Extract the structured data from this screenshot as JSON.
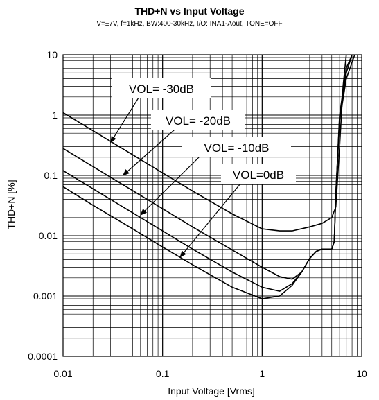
{
  "chart_data": {
    "type": "line",
    "title": "THD+N vs Input Voltage",
    "subtitle": "V=±7V, f=1kHz, BW:400-30kHz, I/O: INA1-Aout, TONE=OFF",
    "xlabel": "Input Voltage [Vrms]",
    "ylabel": "THD+N [%]",
    "xscale": "log",
    "yscale": "log",
    "xlim": [
      0.01,
      10
    ],
    "ylim": [
      0.0001,
      10
    ],
    "grid": true,
    "x_ticks": [
      "0.01",
      "0.1",
      "1",
      "10"
    ],
    "y_ticks": [
      "10",
      "1",
      "0.1",
      "0.01",
      "0.001",
      "0.0001"
    ],
    "series": [
      {
        "name": "VOL= -30dB",
        "x": [
          0.01,
          0.02,
          0.05,
          0.1,
          0.2,
          0.5,
          1,
          1.5,
          2,
          3,
          4,
          5,
          5.5,
          6,
          6.5,
          7
        ],
        "y": [
          1.1,
          0.55,
          0.22,
          0.11,
          0.055,
          0.023,
          0.013,
          0.012,
          0.012,
          0.014,
          0.016,
          0.02,
          0.03,
          0.3,
          3,
          10
        ]
      },
      {
        "name": "VOL= -20dB",
        "x": [
          0.01,
          0.02,
          0.05,
          0.1,
          0.2,
          0.5,
          1,
          1.5,
          2,
          2.5,
          3,
          3.5,
          4,
          5,
          5.3,
          5.5,
          6,
          7,
          8
        ],
        "y": [
          0.28,
          0.14,
          0.056,
          0.028,
          0.014,
          0.0058,
          0.003,
          0.0021,
          0.0019,
          0.0025,
          0.0042,
          0.0055,
          0.006,
          0.006,
          0.008,
          0.05,
          1,
          6,
          10
        ]
      },
      {
        "name": "VOL= -10dB",
        "x": [
          0.01,
          0.02,
          0.05,
          0.1,
          0.2,
          0.5,
          1,
          1.5,
          2,
          2.5,
          3,
          3.5,
          4,
          5,
          5.3,
          5.5,
          6,
          7,
          8
        ],
        "y": [
          0.12,
          0.06,
          0.024,
          0.012,
          0.006,
          0.0025,
          0.0014,
          0.0012,
          0.0016,
          0.0025,
          0.0042,
          0.0055,
          0.006,
          0.006,
          0.008,
          0.05,
          0.9,
          5,
          10
        ]
      },
      {
        "name": "VOL=0dB",
        "x": [
          0.01,
          0.02,
          0.05,
          0.1,
          0.2,
          0.5,
          1,
          1.5,
          2,
          2.5,
          3,
          3.5,
          4,
          5,
          5.3,
          5.5,
          6,
          7,
          8.5
        ],
        "y": [
          0.065,
          0.032,
          0.013,
          0.0065,
          0.0033,
          0.0014,
          0.0009,
          0.001,
          0.0015,
          0.0025,
          0.0042,
          0.0055,
          0.006,
          0.006,
          0.008,
          0.05,
          0.8,
          4,
          10
        ]
      }
    ],
    "annotations": [
      {
        "text": "VOL= -30dB",
        "arrow_to": [
          0.03,
          0.35
        ]
      },
      {
        "text": "VOL= -20dB",
        "arrow_to": [
          0.04,
          0.1
        ]
      },
      {
        "text": "VOL= -10dB",
        "arrow_to": [
          0.06,
          0.022
        ]
      },
      {
        "text": "VOL=0dB",
        "arrow_to": [
          0.15,
          0.0044
        ]
      }
    ]
  },
  "colors": {
    "background": "#ffffff",
    "line": "#000000",
    "grid": "#000000"
  }
}
